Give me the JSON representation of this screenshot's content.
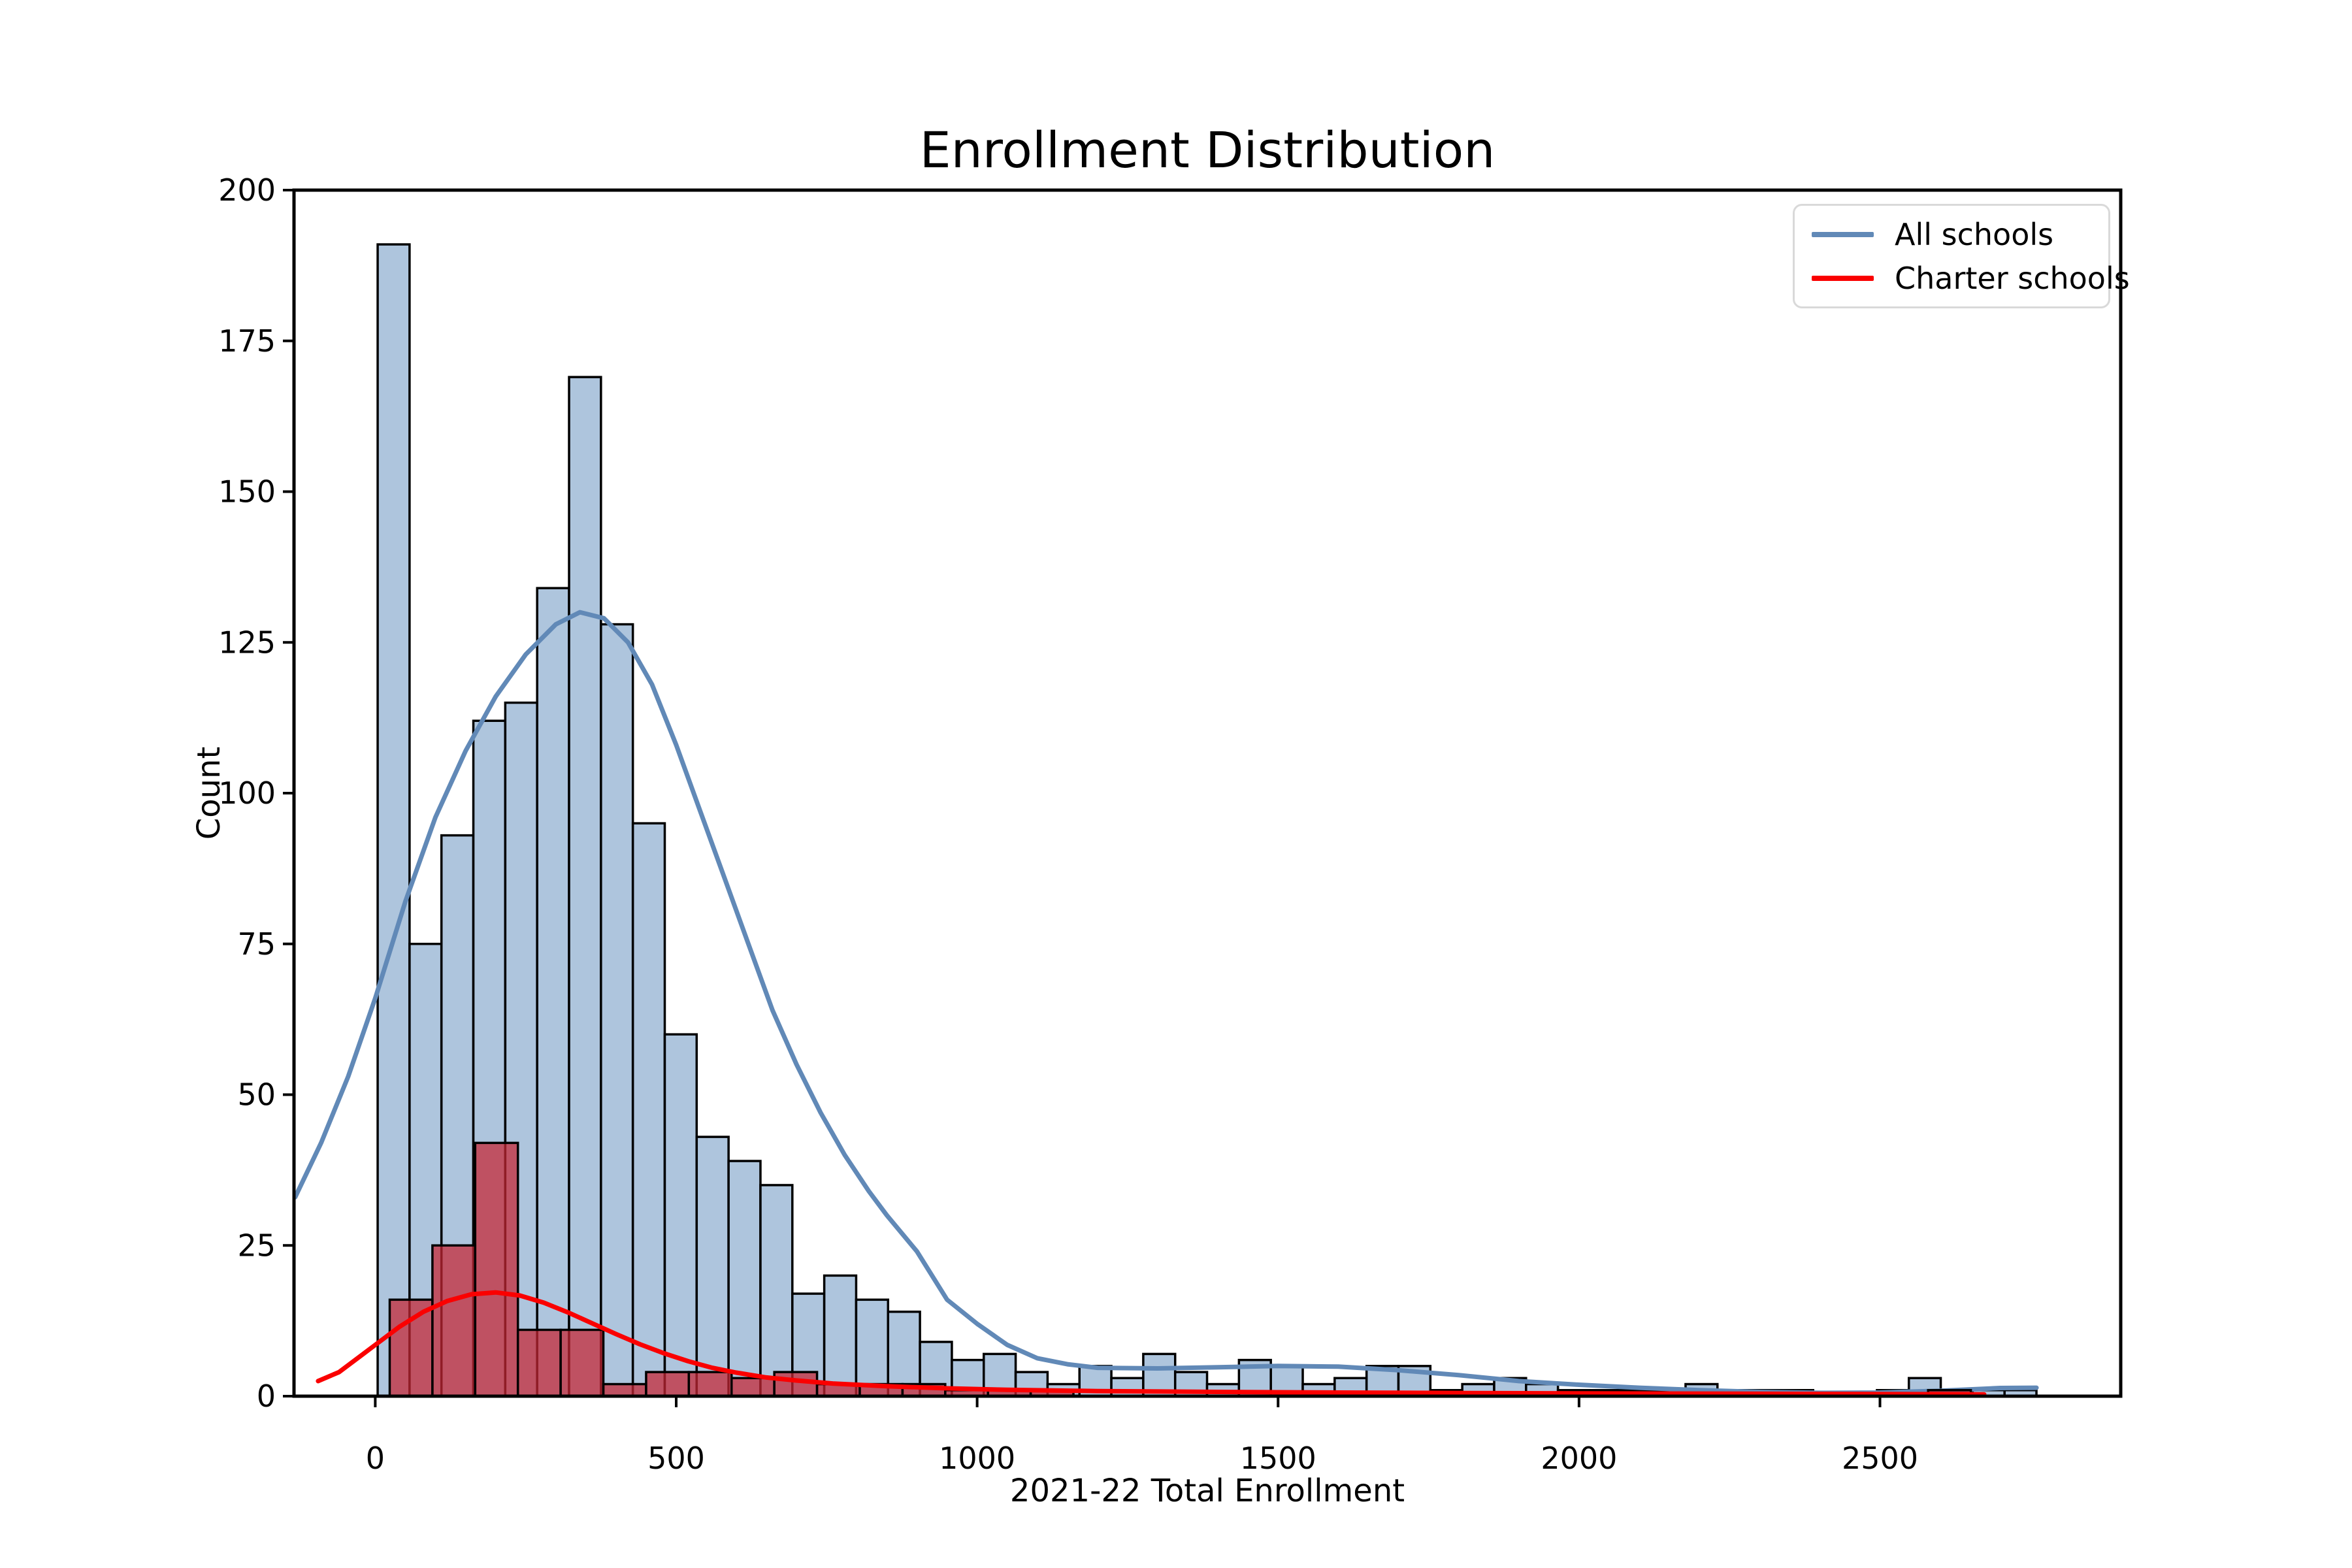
{
  "title": "Enrollment Distribution",
  "chart_data": {
    "type": "histogram",
    "title": "Enrollment Distribution",
    "xlabel": "2021-22 Total Enrollment",
    "ylabel": "Count",
    "xlim": [
      -135,
      2900
    ],
    "ylim": [
      0,
      200
    ],
    "xticks": [
      0,
      500,
      1000,
      1500,
      2000,
      2500
    ],
    "yticks": [
      0,
      25,
      50,
      75,
      100,
      125,
      150,
      175,
      200
    ],
    "grid": false,
    "legend_position": "upper right",
    "legend": [
      {
        "label": "All schools",
        "color": "#6189b7"
      },
      {
        "label": "Charter schools",
        "color": "#fa0000"
      }
    ],
    "colors": {
      "all_fill": "#aec5dd",
      "all_edge": "#000000",
      "all_kde": "#6189b7",
      "charter_fill": "rgba(197,38,52,0.73)",
      "charter_edge": "#000000",
      "charter_kde": "#fa0000",
      "axis": "#000000"
    },
    "series": [
      {
        "name": "All schools",
        "kind": "histogram",
        "bin_start": 4,
        "bin_width": 53,
        "counts": [
          191,
          75,
          93,
          112,
          115,
          134,
          169,
          128,
          95,
          60,
          43,
          39,
          35,
          17,
          20,
          16,
          14,
          9,
          6,
          7,
          4,
          2,
          5,
          3,
          7,
          4,
          2,
          6,
          5,
          2,
          3,
          5,
          5,
          1,
          2,
          3,
          2,
          1,
          1,
          1,
          1,
          2,
          1,
          1,
          1,
          0,
          0,
          1,
          3,
          1,
          1,
          1
        ]
      },
      {
        "name": "All schools KDE",
        "kind": "kde",
        "points": [
          [
            -133,
            33
          ],
          [
            -90,
            42
          ],
          [
            -45,
            53
          ],
          [
            0,
            66
          ],
          [
            50,
            82
          ],
          [
            100,
            96
          ],
          [
            150,
            107
          ],
          [
            200,
            116
          ],
          [
            250,
            123
          ],
          [
            300,
            128
          ],
          [
            340,
            130
          ],
          [
            380,
            129
          ],
          [
            420,
            125
          ],
          [
            460,
            118
          ],
          [
            500,
            108
          ],
          [
            540,
            97
          ],
          [
            580,
            86
          ],
          [
            620,
            75
          ],
          [
            660,
            64
          ],
          [
            700,
            55
          ],
          [
            740,
            47
          ],
          [
            780,
            40
          ],
          [
            820,
            34
          ],
          [
            850,
            30
          ],
          [
            900,
            24
          ],
          [
            950,
            16
          ],
          [
            1000,
            12
          ],
          [
            1050,
            8.5
          ],
          [
            1100,
            6.3
          ],
          [
            1150,
            5.3
          ],
          [
            1200,
            4.7
          ],
          [
            1300,
            4.6
          ],
          [
            1400,
            4.8
          ],
          [
            1500,
            5.0
          ],
          [
            1600,
            4.9
          ],
          [
            1700,
            4.3
          ],
          [
            1800,
            3.5
          ],
          [
            1900,
            2.5
          ],
          [
            2000,
            1.9
          ],
          [
            2100,
            1.4
          ],
          [
            2200,
            1.0
          ],
          [
            2300,
            0.7
          ],
          [
            2400,
            0.55
          ],
          [
            2500,
            0.6
          ],
          [
            2600,
            0.9
          ],
          [
            2700,
            1.35
          ],
          [
            2760,
            1.4
          ]
        ]
      },
      {
        "name": "Charter schools",
        "kind": "histogram",
        "bin_start": 24,
        "bin_width": 71,
        "counts": [
          16,
          25,
          42,
          11,
          11,
          2,
          4,
          4,
          3,
          4,
          2,
          2,
          2,
          1,
          1,
          1,
          0,
          0,
          0,
          0,
          0,
          0,
          0,
          0,
          0,
          0,
          0,
          0,
          0,
          0,
          0,
          0,
          0,
          0,
          0,
          0,
          1,
          0
        ]
      },
      {
        "name": "Charter schools KDE",
        "kind": "kde",
        "points": [
          [
            -95,
            2.5
          ],
          [
            -60,
            4
          ],
          [
            -20,
            7
          ],
          [
            0,
            8.5
          ],
          [
            40,
            11.5
          ],
          [
            80,
            14
          ],
          [
            120,
            15.8
          ],
          [
            160,
            16.9
          ],
          [
            200,
            17.2
          ],
          [
            240,
            16.7
          ],
          [
            280,
            15.5
          ],
          [
            320,
            13.9
          ],
          [
            360,
            12.1
          ],
          [
            400,
            10.3
          ],
          [
            440,
            8.6
          ],
          [
            480,
            7.1
          ],
          [
            520,
            5.8
          ],
          [
            560,
            4.7
          ],
          [
            600,
            3.9
          ],
          [
            650,
            3.1
          ],
          [
            700,
            2.6
          ],
          [
            760,
            2.1
          ],
          [
            850,
            1.65
          ],
          [
            950,
            1.3
          ],
          [
            1050,
            1.05
          ],
          [
            1200,
            0.85
          ],
          [
            1400,
            0.7
          ],
          [
            1600,
            0.6
          ],
          [
            1800,
            0.52
          ],
          [
            2000,
            0.47
          ],
          [
            2200,
            0.42
          ],
          [
            2400,
            0.38
          ],
          [
            2600,
            0.33
          ],
          [
            2673,
            0.3
          ]
        ]
      }
    ]
  }
}
